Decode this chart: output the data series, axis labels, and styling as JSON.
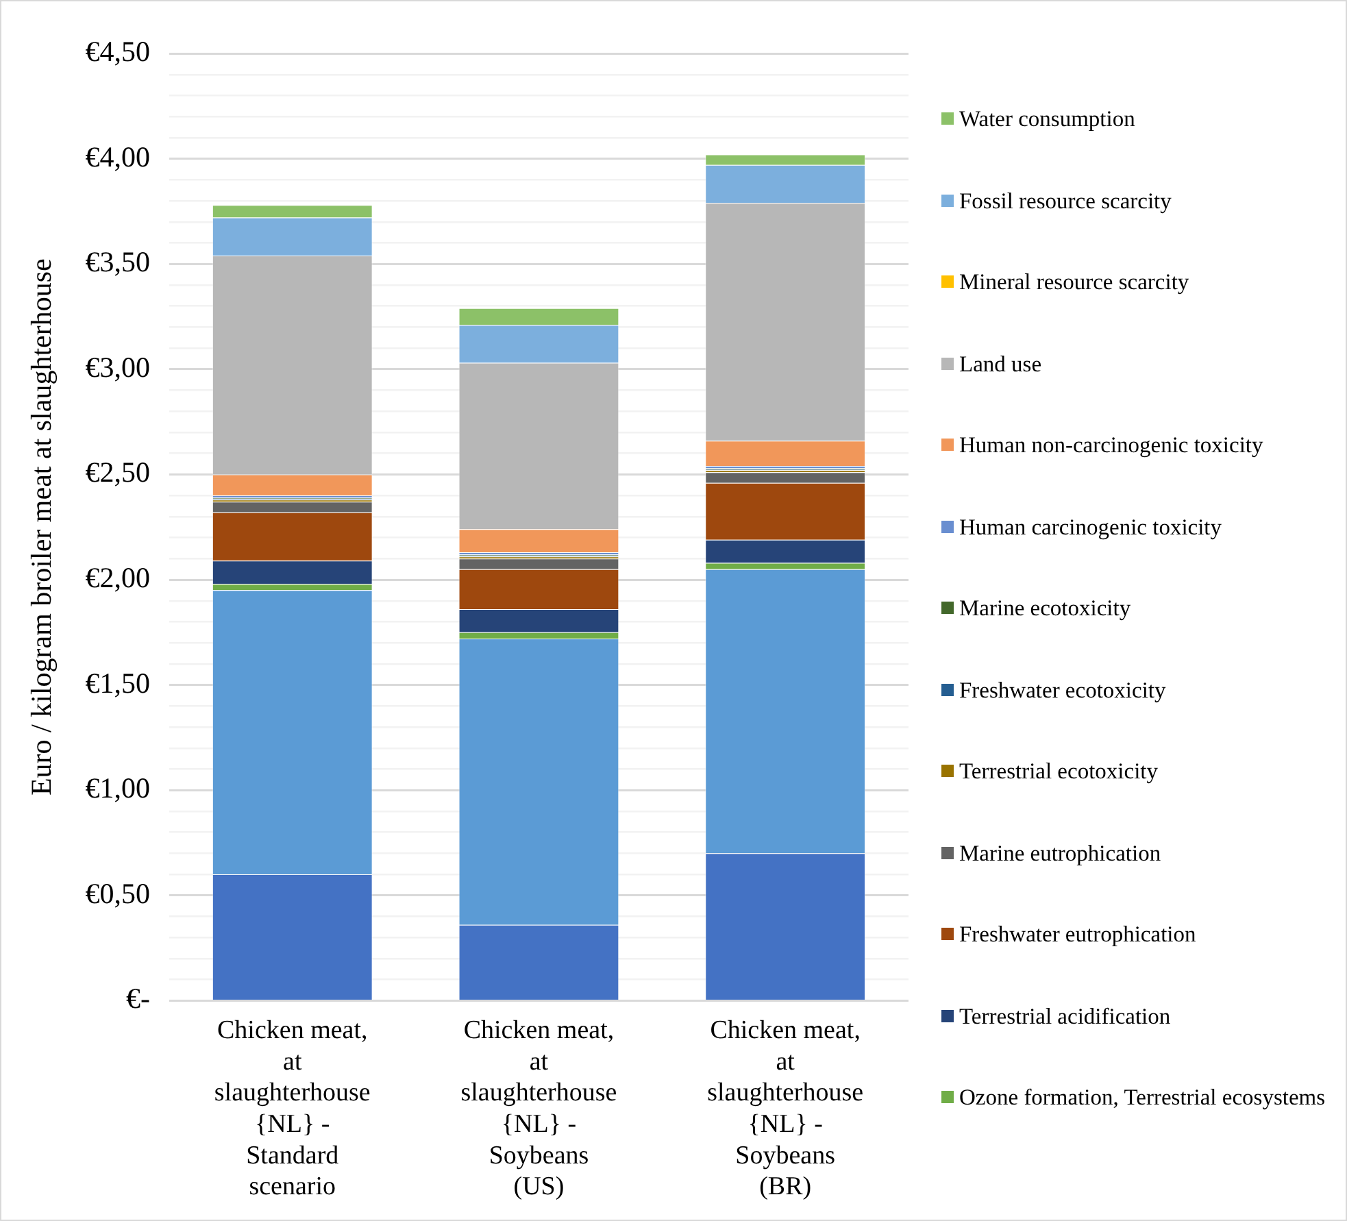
{
  "chart_data": {
    "type": "bar",
    "stacked": true,
    "ylabel": "Euro / kilogram broiler meat at slaughterhouse",
    "categories": [
      "Chicken meat, at slaughterhouse {NL} - Standard scenario",
      "Chicken meat, at slaughterhouse {NL} - Soybeans (US)",
      "Chicken meat, at slaughterhouse {NL} - Soybeans (BR)"
    ],
    "series": [
      {
        "color": "#4472c4",
        "values": [
          0.6,
          0.36,
          0.7
        ]
      },
      {
        "color": "#5b9bd5",
        "values": [
          1.35,
          1.36,
          1.35
        ]
      },
      {
        "name": "Ozone formation, Terrestrial ecosystems",
        "color": "#70ad47",
        "values": [
          0.03,
          0.03,
          0.03
        ]
      },
      {
        "name": "Terrestrial acidification",
        "color": "#264478",
        "values": [
          0.11,
          0.11,
          0.11
        ]
      },
      {
        "name": "Freshwater eutrophication",
        "color": "#9e480e",
        "values": [
          0.23,
          0.19,
          0.27
        ]
      },
      {
        "name": "Marine eutrophication",
        "color": "#636363",
        "values": [
          0.05,
          0.05,
          0.05
        ]
      },
      {
        "name": "Terrestrial ecotoxicity",
        "color": "#997300",
        "values": [
          0.01,
          0.01,
          0.01
        ]
      },
      {
        "name": "Freshwater ecotoxicity",
        "color": "#255e91",
        "values": [
          0.005,
          0.005,
          0.005
        ]
      },
      {
        "name": "Marine ecotoxicity",
        "color": "#43682b",
        "values": [
          0.005,
          0.005,
          0.005
        ]
      },
      {
        "name": "Human carcinogenic toxicity",
        "color": "#698ed0",
        "values": [
          0.01,
          0.01,
          0.01
        ]
      },
      {
        "name": "Human non-carcinogenic toxicity",
        "color": "#f1975a",
        "values": [
          0.1,
          0.11,
          0.12
        ]
      },
      {
        "name": "Land use",
        "color": "#b7b7b7",
        "values": [
          1.04,
          0.79,
          1.13
        ]
      },
      {
        "name": "Mineral resource scarcity",
        "color": "#ffc000",
        "values": [
          0,
          0,
          0
        ]
      },
      {
        "name": "Fossil resource scarcity",
        "color": "#7cafdd",
        "values": [
          0.18,
          0.18,
          0.18
        ]
      },
      {
        "name": "Water consumption",
        "color": "#8cc168",
        "values": [
          0.06,
          0.08,
          0.05
        ]
      }
    ],
    "ylim": [
      0,
      4.5
    ],
    "yticks": [
      {
        "value": 0,
        "label": "€-"
      },
      {
        "value": 0.1,
        "label": null
      },
      {
        "value": 0.2,
        "label": null
      },
      {
        "value": 0.3,
        "label": null
      },
      {
        "value": 0.4,
        "label": null
      },
      {
        "value": 0.5,
        "label": "€0,50"
      },
      {
        "value": 0.6,
        "label": null
      },
      {
        "value": 0.7,
        "label": null
      },
      {
        "value": 0.8,
        "label": null
      },
      {
        "value": 0.9,
        "label": null
      },
      {
        "value": 1,
        "label": "€1,00"
      },
      {
        "value": 1.1,
        "label": null
      },
      {
        "value": 1.2,
        "label": null
      },
      {
        "value": 1.3,
        "label": null
      },
      {
        "value": 1.4,
        "label": null
      },
      {
        "value": 1.5,
        "label": "€1,50"
      },
      {
        "value": 1.6,
        "label": null
      },
      {
        "value": 1.7,
        "label": null
      },
      {
        "value": 1.8,
        "label": null
      },
      {
        "value": 1.9,
        "label": null
      },
      {
        "value": 2,
        "label": "€2,00"
      },
      {
        "value": 2.1,
        "label": null
      },
      {
        "value": 2.2,
        "label": null
      },
      {
        "value": 2.3,
        "label": null
      },
      {
        "value": 2.4,
        "label": null
      },
      {
        "value": 2.5,
        "label": "€2,50"
      },
      {
        "value": 2.6,
        "label": null
      },
      {
        "value": 2.7,
        "label": null
      },
      {
        "value": 2.8,
        "label": null
      },
      {
        "value": 2.9,
        "label": null
      },
      {
        "value": 3,
        "label": "€3,00"
      },
      {
        "value": 3.1,
        "label": null
      },
      {
        "value": 3.2,
        "label": null
      },
      {
        "value": 3.3,
        "label": null
      },
      {
        "value": 3.4,
        "label": null
      },
      {
        "value": 3.5,
        "label": "€3,50"
      },
      {
        "value": 3.6,
        "label": null
      },
      {
        "value": 3.7,
        "label": null
      },
      {
        "value": 3.8,
        "label": null
      },
      {
        "value": 3.9,
        "label": null
      },
      {
        "value": 4,
        "label": "€4,00"
      },
      {
        "value": 4.1,
        "label": null
      },
      {
        "value": 4.2,
        "label": null
      },
      {
        "value": 4.3,
        "label": null
      },
      {
        "value": 4.4,
        "label": null
      },
      {
        "value": 4.5,
        "label": "€4,50"
      }
    ],
    "grid": true,
    "legend": "right"
  }
}
